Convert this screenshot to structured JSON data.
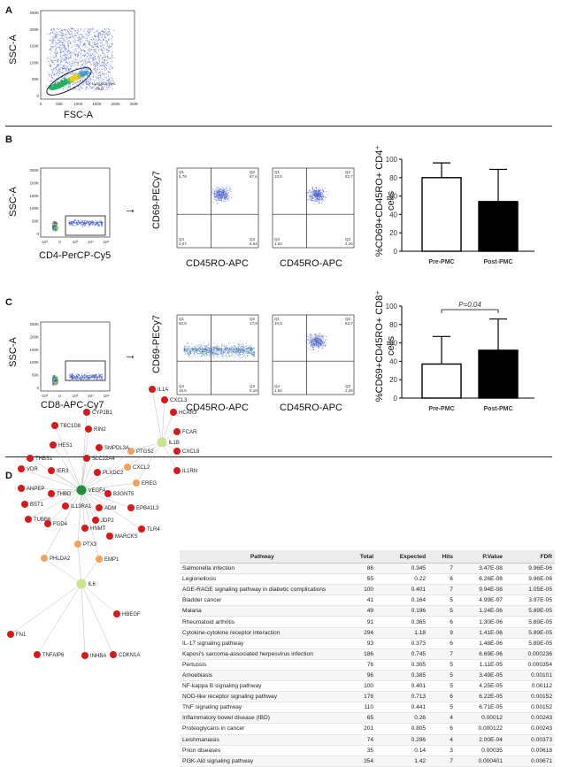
{
  "panels": {
    "A": {
      "letter": "A",
      "plot": {
        "ylabel": "SSC-A",
        "xlabel": "FSC-A",
        "gate_label": "Lymphocytes",
        "gate_value": "70,0",
        "yticks": [
          "250K",
          "200K",
          "150K",
          "100K",
          "50K",
          "0"
        ],
        "xticks": [
          "0",
          "50K",
          "100K",
          "150K",
          "200K",
          "250K"
        ]
      }
    },
    "B": {
      "letter": "B",
      "gate_plot": {
        "ylabel": "SSC-A",
        "xlabel": "CD4-PerCP-Cy5",
        "yticks": [
          "250K",
          "200K",
          "150K",
          "100K",
          "50K",
          "0"
        ],
        "xticks": [
          "-10³",
          "0",
          "10³",
          "10⁴",
          "10⁵"
        ]
      },
      "quad_ylabel": "CD69-PECy7",
      "quad_plots": [
        {
          "xlabel": "CD45RO-APC",
          "q1_name": "Q1",
          "q1": "5,79",
          "q2_name": "Q2",
          "q2": "67,6",
          "q3_name": "Q3",
          "q3": "6,64",
          "q4_name": "Q4",
          "q4": "2,07"
        },
        {
          "xlabel": "CD45RO-APC",
          "q1_name": "Q1",
          "q1": "10,5",
          "q2_name": "Q2",
          "q2": "63,7",
          "q3_name": "Q3",
          "q3": "2,26",
          "q4_name": "Q4",
          "q4": "1,52"
        }
      ],
      "bar": {
        "ylabel_html": "%CD69+CD45RO+ CD4⁺ cells"
      }
    },
    "C": {
      "letter": "C",
      "gate_plot": {
        "ylabel": "SSC-A",
        "xlabel": "CD8-APC-Cy7",
        "yticks": [
          "250K",
          "200K",
          "150K",
          "100K",
          "50K",
          "0"
        ],
        "xticks": [
          "-10³",
          "0",
          "10³",
          "10⁴",
          "10⁵"
        ]
      },
      "quad_ylabel": "CD69-PECy7",
      "quad_plots": [
        {
          "xlabel": "CD45RO-APC",
          "q1_name": "Q1",
          "q1": "50,5",
          "q2_name": "Q2",
          "q2": "17,9",
          "q3_name": "Q3",
          "q3": "5,18",
          "q4_name": "Q4",
          "q4": "18,5"
        },
        {
          "xlabel": "CD45RO-APC",
          "q1_name": "Q1",
          "q1": "10,5",
          "q2_name": "Q2",
          "q2": "63,7",
          "q3_name": "Q3",
          "q3": "2,26",
          "q4_name": "Q4",
          "q4": "1,52"
        }
      ],
      "bar": {
        "ylabel_html": "%CD69+CD45RO+ CD8⁺ cells",
        "pvalue": "P=0.04"
      }
    },
    "D": {
      "letter": "D",
      "network": {
        "nodes": [
          {
            "id": "IL1A",
            "c": "red"
          },
          {
            "id": "CXCL3",
            "c": "red"
          },
          {
            "id": "HCAR3",
            "c": "red"
          },
          {
            "id": "FCAR",
            "c": "red"
          },
          {
            "id": "CXCL8",
            "c": "red"
          },
          {
            "id": "IL1RN",
            "c": "red"
          },
          {
            "id": "IL1B",
            "c": "hub"
          },
          {
            "id": "PTGS2",
            "c": "orange"
          },
          {
            "id": "CXCL2",
            "c": "orange"
          },
          {
            "id": "EREG",
            "c": "orange"
          },
          {
            "id": "CYP1B1",
            "c": "red"
          },
          {
            "id": "RIN2",
            "c": "red"
          },
          {
            "id": "TBC1D8",
            "c": "red"
          },
          {
            "id": "HES1",
            "c": "red"
          },
          {
            "id": "SMPDL3A",
            "c": "red"
          },
          {
            "id": "THBS1",
            "c": "red"
          },
          {
            "id": "SLC22A4",
            "c": "red"
          },
          {
            "id": "VDR",
            "c": "red"
          },
          {
            "id": "IER3",
            "c": "red"
          },
          {
            "id": "PLXDC2",
            "c": "red"
          },
          {
            "id": "ANPEP",
            "c": "red"
          },
          {
            "id": "B3GNT5",
            "c": "red"
          },
          {
            "id": "THBD",
            "c": "red"
          },
          {
            "id": "VEGFA",
            "c": "green"
          },
          {
            "id": "BST1",
            "c": "red"
          },
          {
            "id": "ADM",
            "c": "red"
          },
          {
            "id": "IL13RA1",
            "c": "red"
          },
          {
            "id": "JDP2",
            "c": "red"
          },
          {
            "id": "EPB41L3",
            "c": "red"
          },
          {
            "id": "TUBB6",
            "c": "red"
          },
          {
            "id": "HNMT",
            "c": "red"
          },
          {
            "id": "FGD4",
            "c": "red"
          },
          {
            "id": "MARCKS",
            "c": "red"
          },
          {
            "id": "TLR4",
            "c": "red"
          },
          {
            "id": "PTX3",
            "c": "orange"
          },
          {
            "id": "PHLDA2",
            "c": "orange"
          },
          {
            "id": "EMP1",
            "c": "orange"
          },
          {
            "id": "IL6",
            "c": "hub"
          },
          {
            "id": "FN1",
            "c": "red"
          },
          {
            "id": "HBEGF",
            "c": "red"
          },
          {
            "id": "TNFAIP6",
            "c": "red"
          },
          {
            "id": "INHBA",
            "c": "red"
          },
          {
            "id": "CDKN1A",
            "c": "red"
          }
        ]
      },
      "table": {
        "headers": [
          "Pathway",
          "Total",
          "Expected",
          "Hits",
          "P.Value",
          "FDR"
        ],
        "rows": [
          [
            "Salmonella infection",
            "86",
            "0.345",
            "7",
            "3.47E-08",
            "9.96E-06"
          ],
          [
            "Legionellosis",
            "55",
            "0.22",
            "6",
            "6.26E-08",
            "9.96E-06"
          ],
          [
            "AGE-RAGE signaling pathway in diabetic complications",
            "100",
            "0.401",
            "7",
            "9.94E-08",
            "1.05E-05"
          ],
          [
            "Bladder cancer",
            "41",
            "0.164",
            "5",
            "4.99E-07",
            "3.97E-05"
          ],
          [
            "Malaria",
            "49",
            "0.196",
            "5",
            "1.24E-06",
            "5.89E-05"
          ],
          [
            "Rheumatoid arthritis",
            "91",
            "0.365",
            "6",
            "1.30E-06",
            "5.89E-05"
          ],
          [
            "Cytokine-cytokine receptor interaction",
            "294",
            "1.18",
            "9",
            "1.41E-06",
            "5.89E-05"
          ],
          [
            "IL-17 signaling pathway",
            "93",
            "0.373",
            "6",
            "1.48E-06",
            "5.89E-05"
          ],
          [
            "Kaposi's sarcoma-associated herpesvirus infection",
            "186",
            "0.745",
            "7",
            "6.69E-06",
            "0.000236"
          ],
          [
            "Pertussis",
            "76",
            "0.305",
            "5",
            "1.11E-05",
            "0.000354"
          ],
          [
            "Amoebiasis",
            "96",
            "0.385",
            "5",
            "3.49E-05",
            "0.00101"
          ],
          [
            "NF-kappa B signaling pathway",
            "100",
            "0.401",
            "5",
            "4.25E-05",
            "0.00112"
          ],
          [
            "NOD-like receptor signaling pathway",
            "178",
            "0.713",
            "6",
            "6.22E-05",
            "0.00152"
          ],
          [
            "TNF signaling pathway",
            "110",
            "0.441",
            "5",
            "6.71E-05",
            "0.00152"
          ],
          [
            "Inflammatory bowel disease (IBD)",
            "65",
            "0.26",
            "4",
            "0.00012",
            "0.00243"
          ],
          [
            "Proteoglycans in cancer",
            "201",
            "0.805",
            "6",
            "0.000122",
            "0.00243"
          ],
          [
            "Leishmaniasis",
            "74",
            "0.296",
            "4",
            "2.00E-04",
            "0.00373"
          ],
          [
            "Prion diseases",
            "35",
            "0.14",
            "3",
            "0.00035",
            "0.00618"
          ],
          [
            "PI3K-Akt signaling pathway",
            "354",
            "1.42",
            "7",
            "0.000401",
            "0.00671"
          ]
        ]
      }
    }
  },
  "chart_data": [
    {
      "type": "bar",
      "categories": [
        "Pre-PMC",
        "Post-PMC"
      ],
      "values": [
        80,
        54
      ],
      "errors": [
        16,
        35
      ],
      "ylim": [
        0,
        100
      ],
      "yticks": [
        0,
        20,
        40,
        60,
        80,
        100
      ],
      "fills": [
        "#ffffff",
        "#000000"
      ]
    },
    {
      "type": "bar",
      "categories": [
        "Pre-PMC",
        "Post-PMC"
      ],
      "values": [
        37,
        52
      ],
      "errors": [
        30,
        34
      ],
      "ylim": [
        0,
        100
      ],
      "yticks": [
        0,
        20,
        40,
        60,
        80,
        100
      ],
      "fills": [
        "#ffffff",
        "#000000"
      ],
      "annotation": "P=0.04"
    }
  ],
  "colors": {
    "red": "#d7191c",
    "orange": "#f4a259",
    "green": "#1f8f3a",
    "hub": "#c9e58c",
    "edge": "#bbbbbb"
  }
}
